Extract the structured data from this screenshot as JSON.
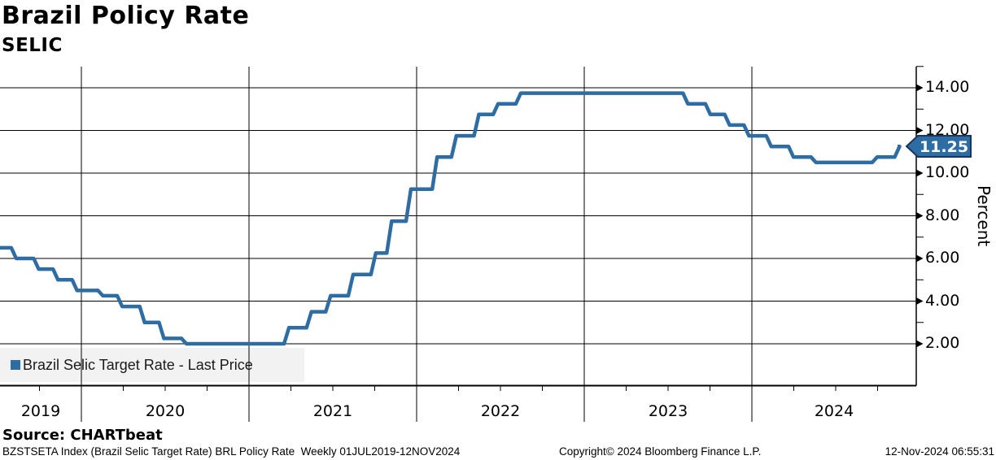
{
  "header": {
    "title": "Brazil Policy Rate",
    "subtitle": "SELIC"
  },
  "legend": {
    "marker_color": "#2e6da4",
    "label": "Brazil Selic Target Rate - Last Price"
  },
  "y_axis": {
    "title": "Percent",
    "tick_values": [
      14,
      12,
      10,
      8,
      6,
      4,
      2
    ],
    "tick_labels": [
      "14.00",
      "12.00",
      "10.00",
      "8.00",
      "6.00",
      "4.00",
      "2.00"
    ],
    "minor_tick_values": [
      15,
      13,
      11,
      9,
      7,
      5,
      3
    ]
  },
  "x_axis": {
    "tick_labels": [
      "2019",
      "2020",
      "2021",
      "2022",
      "2023",
      "2024"
    ]
  },
  "price_tag": {
    "label": "11.25",
    "fill": "#2e6da4",
    "border": "#16365c",
    "text_color": "#ffffff"
  },
  "footer": {
    "source": "Source: CHARTbeat",
    "description": "BZSTSETA Index (Brazil Selic Target Rate) BRL Policy Rate  Weekly 01JUL2019-12NOV2024",
    "copyright": "Copyright© 2024 Bloomberg Finance L.P.",
    "timestamp": "12-Nov-2024 06:55:31"
  },
  "chart_data": {
    "type": "line",
    "step": true,
    "title": "Brazil Policy Rate",
    "subtitle": "SELIC",
    "ylabel": "Percent",
    "ylim": [
      0,
      15
    ],
    "y_tick_step": 2,
    "grid": true,
    "legend_position": "bottom-left",
    "line_color": "#2e6da4",
    "x_range": [
      "01JUL2019",
      "12NOV2024"
    ],
    "frequency": "Weekly",
    "last_price": 11.25,
    "series": [
      {
        "name": "Brazil Selic Target Rate - Last Price",
        "points": [
          {
            "date": "01JUL2019",
            "t": 2019.497,
            "value": 6.5
          },
          {
            "date": "01AUG2019",
            "t": 2019.582,
            "value": 6.0
          },
          {
            "date": "19SEP2019",
            "t": 2019.716,
            "value": 5.5
          },
          {
            "date": "31OCT2019",
            "t": 2019.831,
            "value": 5.0
          },
          {
            "date": "12DEC2019",
            "t": 2019.945,
            "value": 4.5
          },
          {
            "date": "06FEB2020",
            "t": 2020.099,
            "value": 4.25
          },
          {
            "date": "19MAR2020",
            "t": 2020.214,
            "value": 3.75
          },
          {
            "date": "07MAY2020",
            "t": 2020.348,
            "value": 3.0
          },
          {
            "date": "18JUN2020",
            "t": 2020.463,
            "value": 2.25
          },
          {
            "date": "06AUG2020",
            "t": 2020.597,
            "value": 2.0
          },
          {
            "date": "18MAR2021",
            "t": 2021.209,
            "value": 2.75
          },
          {
            "date": "06MAY2021",
            "t": 2021.343,
            "value": 3.5
          },
          {
            "date": "17JUN2021",
            "t": 2021.458,
            "value": 4.25
          },
          {
            "date": "05AUG2021",
            "t": 2021.592,
            "value": 5.25
          },
          {
            "date": "23SEP2021",
            "t": 2021.727,
            "value": 6.25
          },
          {
            "date": "28OCT2021",
            "t": 2021.822,
            "value": 7.75
          },
          {
            "date": "09DEC2021",
            "t": 2021.937,
            "value": 9.25
          },
          {
            "date": "03FEB2022",
            "t": 2022.093,
            "value": 10.75
          },
          {
            "date": "17MAR2022",
            "t": 2022.208,
            "value": 11.75
          },
          {
            "date": "05MAY2022",
            "t": 2022.342,
            "value": 12.75
          },
          {
            "date": "16JUN2022",
            "t": 2022.457,
            "value": 13.25
          },
          {
            "date": "04AUG2022",
            "t": 2022.592,
            "value": 13.75
          },
          {
            "date": "03AUG2023",
            "t": 2023.589,
            "value": 13.25
          },
          {
            "date": "21SEP2023",
            "t": 2023.723,
            "value": 12.75
          },
          {
            "date": "02NOV2023",
            "t": 2023.838,
            "value": 12.25
          },
          {
            "date": "14DEC2023",
            "t": 2023.953,
            "value": 11.75
          },
          {
            "date": "01FEB2024",
            "t": 2024.086,
            "value": 11.25
          },
          {
            "date": "21MAR2024",
            "t": 2024.219,
            "value": 10.75
          },
          {
            "date": "09MAY2024",
            "t": 2024.353,
            "value": 10.5
          },
          {
            "date": "19SEP2024",
            "t": 2024.718,
            "value": 10.75
          },
          {
            "date": "07NOV2024",
            "t": 2024.852,
            "value": 11.25
          },
          {
            "date": "12NOV2024",
            "t": 2024.866,
            "value": 11.25
          }
        ]
      }
    ]
  }
}
